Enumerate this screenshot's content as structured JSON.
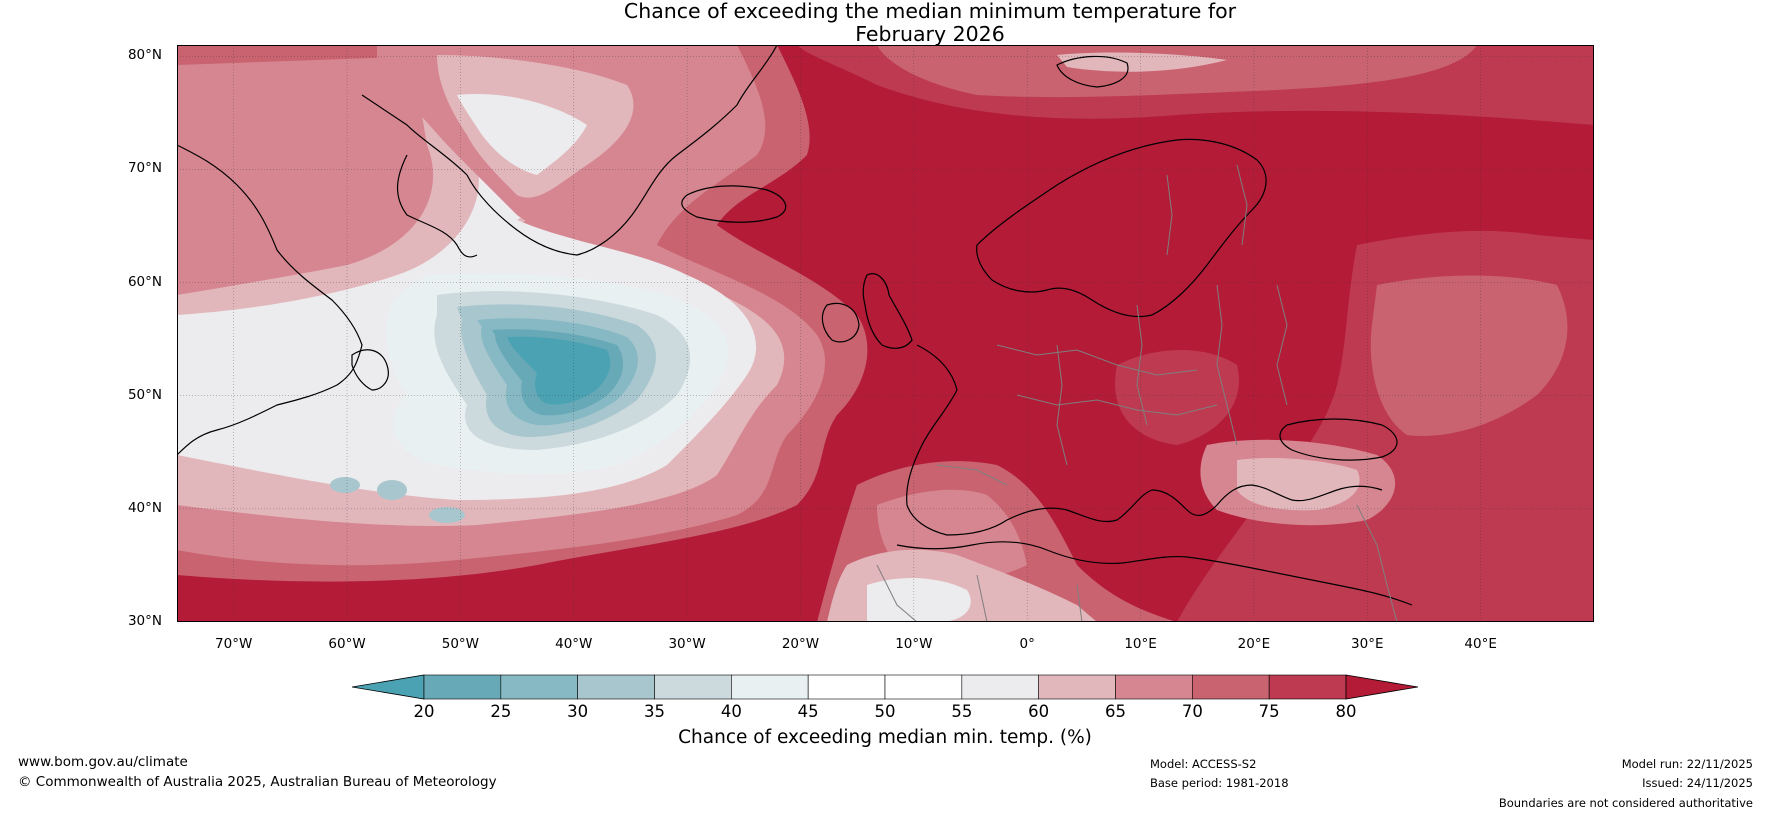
{
  "title": {
    "line1": "Chance of exceeding the median minimum temperature for",
    "line2": "February 2026"
  },
  "map": {
    "lat_labels": [
      "80°N",
      "70°N",
      "60°N",
      "50°N",
      "40°N",
      "30°N"
    ],
    "lon_labels": [
      "70°W",
      "60°W",
      "50°W",
      "40°W",
      "30°W",
      "20°W",
      "10°W",
      "0°",
      "10°E",
      "20°E",
      "30°E",
      "40°E"
    ],
    "lon_range": [
      -75,
      50
    ],
    "lat_range": [
      30,
      81
    ],
    "colors": {
      "ocean_high": "#b31b37",
      "land_high": "#b31b37",
      "band_75_80": "#be3a50",
      "band_70_75": "#c96370",
      "band_65_70": "#d68690",
      "band_60_65": "#e2b7bc",
      "band_55_60": "#ecebed",
      "band_50_55": "#ffffff",
      "band_45_50": "#ffffff",
      "band_40_45": "#e9f0f2",
      "band_35_40": "#ccd9dd",
      "band_30_35": "#a8c6cd",
      "band_25_30": "#86b9c4",
      "band_20_25": "#68a9b8",
      "band_lt_20": "#4aa2b3",
      "coastline": "#000000",
      "borders": "#7f7f7f",
      "gridline": "#333333"
    }
  },
  "colorbar": {
    "ticks": [
      "20",
      "25",
      "30",
      "35",
      "40",
      "45",
      "50",
      "55",
      "60",
      "65",
      "70",
      "75",
      "80"
    ],
    "segment_colors": [
      "#68a9b8",
      "#86b9c4",
      "#a8c6cd",
      "#ccd9dd",
      "#e9f0f2",
      "#ffffff",
      "#ffffff",
      "#ecebed",
      "#e2b7bc",
      "#d68690",
      "#c96370",
      "#be3a50"
    ],
    "low_extend_color": "#4aa2b3",
    "high_extend_color": "#b31b37",
    "label": "Chance of exceeding median min. temp. (%)"
  },
  "footer": {
    "website": "www.bom.gov.au/climate",
    "copyright": "© Commonwealth of Australia 2025, Australian Bureau of Meteorology",
    "model": "Model: ACCESS-S2",
    "base_period": "Base period: 1981-2018",
    "model_run": "Model run: 22/11/2025",
    "issued": "Issued: 24/11/2025",
    "disclaimer": "Boundaries are not considered authoritative"
  }
}
